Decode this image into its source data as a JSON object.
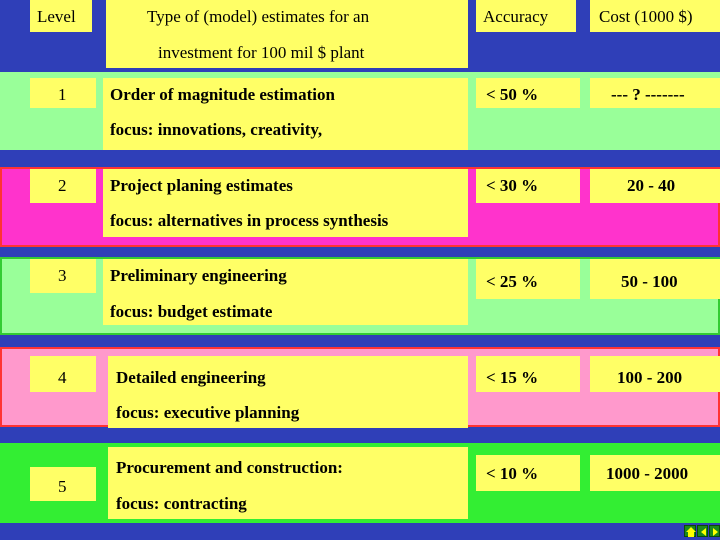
{
  "header": {
    "level": "Level",
    "type_line1": "Type of (model) estimates for an",
    "type_line2": "investment for 100 mil $ plant",
    "accuracy": "Accuracy",
    "cost": "Cost (1000 $)"
  },
  "rows": [
    {
      "level": "1",
      "title": "Order of magnitude estimation",
      "focus": "focus: innovations, creativity,",
      "accuracy": "< 50 %",
      "cost": "--- ? -------",
      "band_color": "#99ff99",
      "band_border": "#99ff99"
    },
    {
      "level": "2",
      "title": "Project planing estimates",
      "focus": "focus: alternatives in process synthesis",
      "accuracy": "< 30 %",
      "cost": "20 - 40",
      "band_color": "#ff33cc",
      "band_border": "#ff3333"
    },
    {
      "level": "3",
      "title": "Preliminary engineering",
      "focus": "focus:  budget   estimate",
      "accuracy": "< 25 %",
      "cost": "50 - 100",
      "band_color": "#99ff99",
      "band_border": "#33cc33"
    },
    {
      "level": "4",
      "title": "Detailed engineering",
      "focus": "focus: executive  planning",
      "accuracy": "< 15 %",
      "cost": "100 - 200",
      "band_color": "#ff99cc",
      "band_border": "#ff3333"
    },
    {
      "level": "5",
      "title": "Procurement and construction:",
      "focus": "focus: contracting",
      "accuracy": "< 10 %",
      "cost": "1000 - 2000",
      "band_color": "#33ee33",
      "band_border": "#33ee33"
    }
  ],
  "nav_icons": [
    "home-icon",
    "back-arrow-icon",
    "forward-arrow-icon"
  ]
}
